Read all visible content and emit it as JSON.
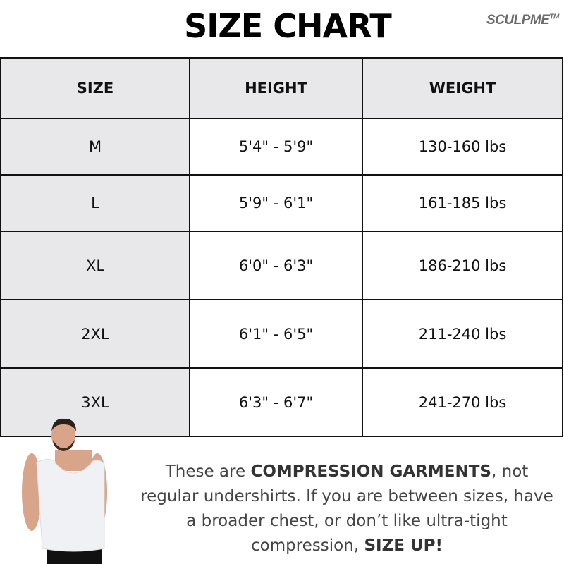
{
  "title": "SIZE CHART",
  "brand": {
    "name": "SCULPME",
    "mark": "TM"
  },
  "table": {
    "headers": [
      "SIZE",
      "HEIGHT",
      "WEIGHT"
    ],
    "rows": [
      [
        "M",
        "5'4\" - 5'9\"",
        "130-160 lbs"
      ],
      [
        "L",
        "5'9\" - 6'1\"",
        "161-185 lbs"
      ],
      [
        "XL",
        "6'0\" - 6'3\"",
        "186-210 lbs"
      ],
      [
        "2XL",
        "6'1\" - 6'5\"",
        "211-240 lbs"
      ],
      [
        "3XL",
        "6'3\" - 6'7\"",
        "241-270 lbs"
      ]
    ]
  },
  "note": {
    "p1": "These are ",
    "b1": "COMPRESSION GARMENTS",
    "p2": ", not regular undershirts. If you are between sizes, have a broader chest,  or don’t like ultra-tight compression, ",
    "b2": "SIZE UP!"
  },
  "colors": {
    "header_bg": "#e8e8ea",
    "brand": "#6b6b6b",
    "note_text": "#444444"
  }
}
